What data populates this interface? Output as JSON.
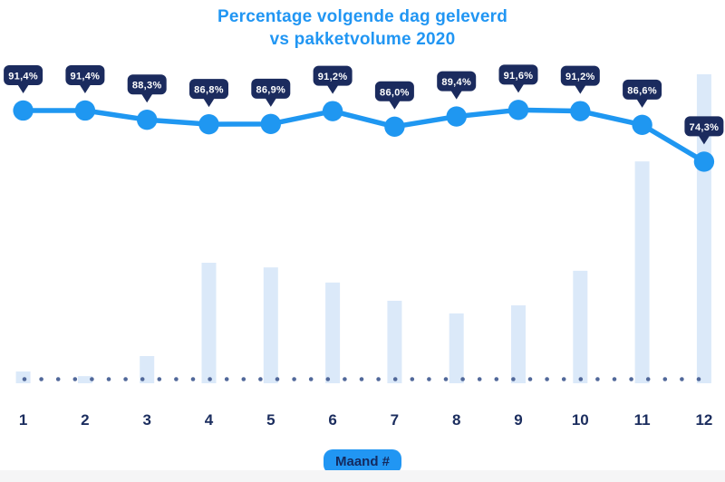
{
  "title": {
    "line1": "Percentage volgende dag geleverd",
    "line2": "vs pakketvolume 2020"
  },
  "x_axis": {
    "badge_label": "Maand #",
    "tick_labels": [
      "1",
      "2",
      "3",
      "4",
      "5",
      "6",
      "7",
      "8",
      "9",
      "10",
      "11",
      "12"
    ]
  },
  "chart_data": {
    "type": "line",
    "subtype": "line-with-bar-combo",
    "title": "Percentage volgende dag geleverd vs pakketvolume 2020",
    "xlabel": "Maand #",
    "ylabel": "",
    "categories": [
      1,
      2,
      3,
      4,
      5,
      6,
      7,
      8,
      9,
      10,
      11,
      12
    ],
    "series": [
      {
        "name": "Percentage volgende dag geleverd",
        "type": "line",
        "color": "#1f97f1",
        "values": [
          91.4,
          91.4,
          88.3,
          86.8,
          86.9,
          91.2,
          86.0,
          89.4,
          91.6,
          91.2,
          86.6,
          74.3
        ],
        "point_labels": [
          "91,4%",
          "91,4%",
          "88,3%",
          "86,8%",
          "86,9%",
          "91,2%",
          "86,0%",
          "89,4%",
          "91,6%",
          "91,2%",
          "86,6%",
          "74,3%"
        ]
      },
      {
        "name": "Pakketvolume 2020",
        "type": "bar",
        "color": "#dbe9f9",
        "values": [
          3.8,
          2.3,
          8.8,
          39.0,
          37.5,
          32.6,
          26.7,
          22.6,
          25.2,
          36.4,
          71.8,
          100.0
        ]
      }
    ],
    "legend": false,
    "grid": false,
    "y_axis_visible": false,
    "annotations": "percentage value shown in a dark navy tooltip bubble above each line point; dotted slate baseline runs along the x-axis; bar series has no visible value axis (values are a relative index, December = 100)"
  },
  "colors": {
    "title_blue": "#2196f3",
    "line_blue": "#1f97f1",
    "tooltip_navy": "#1b2b5e",
    "tooltip_text": "#ffffff",
    "bar_light_blue": "#dbe9f9",
    "baseline_dot": "#51689a",
    "axis_label_navy": "#1b2d5e",
    "xbadge_bg": "#2196f3",
    "xbadge_text": "#142a5e",
    "footer_strip": "#f5f5f6"
  }
}
